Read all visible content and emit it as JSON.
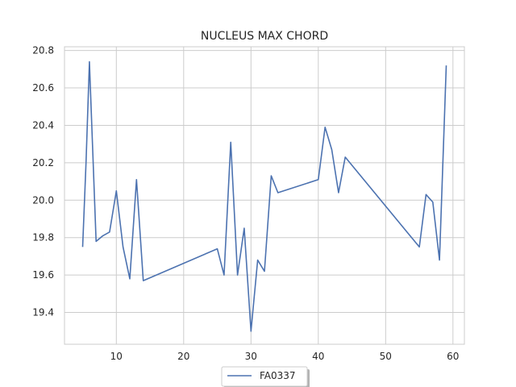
{
  "chart_data": {
    "type": "line",
    "title": "NUCLEUS MAX CHORD",
    "xlabel": "",
    "ylabel": "",
    "xlim": [
      2.3,
      61.7
    ],
    "ylim": [
      19.23,
      20.82
    ],
    "x_ticks": [
      10,
      20,
      30,
      40,
      50,
      60
    ],
    "y_ticks": [
      19.4,
      19.6,
      19.8,
      20.0,
      20.2,
      20.4,
      20.6,
      20.8
    ],
    "grid": true,
    "legend_position": "bottom-center",
    "series": [
      {
        "name": "FA0337",
        "color": "#4c72b0",
        "x": [
          5,
          5.5,
          6,
          7,
          8,
          9,
          10,
          11,
          12,
          13,
          14,
          25,
          26,
          27,
          28,
          29,
          30,
          31,
          32,
          33,
          34,
          40,
          41,
          42,
          43,
          44,
          55,
          56,
          57,
          58,
          59
        ],
        "y": [
          19.75,
          20.2,
          20.74,
          19.78,
          19.81,
          19.83,
          20.05,
          19.75,
          19.58,
          20.11,
          19.57,
          19.74,
          19.6,
          20.31,
          19.6,
          19.85,
          19.3,
          19.68,
          19.62,
          20.13,
          20.04,
          20.11,
          20.39,
          20.27,
          20.04,
          20.23,
          19.75,
          20.03,
          19.99,
          19.68,
          20.72
        ]
      }
    ]
  }
}
